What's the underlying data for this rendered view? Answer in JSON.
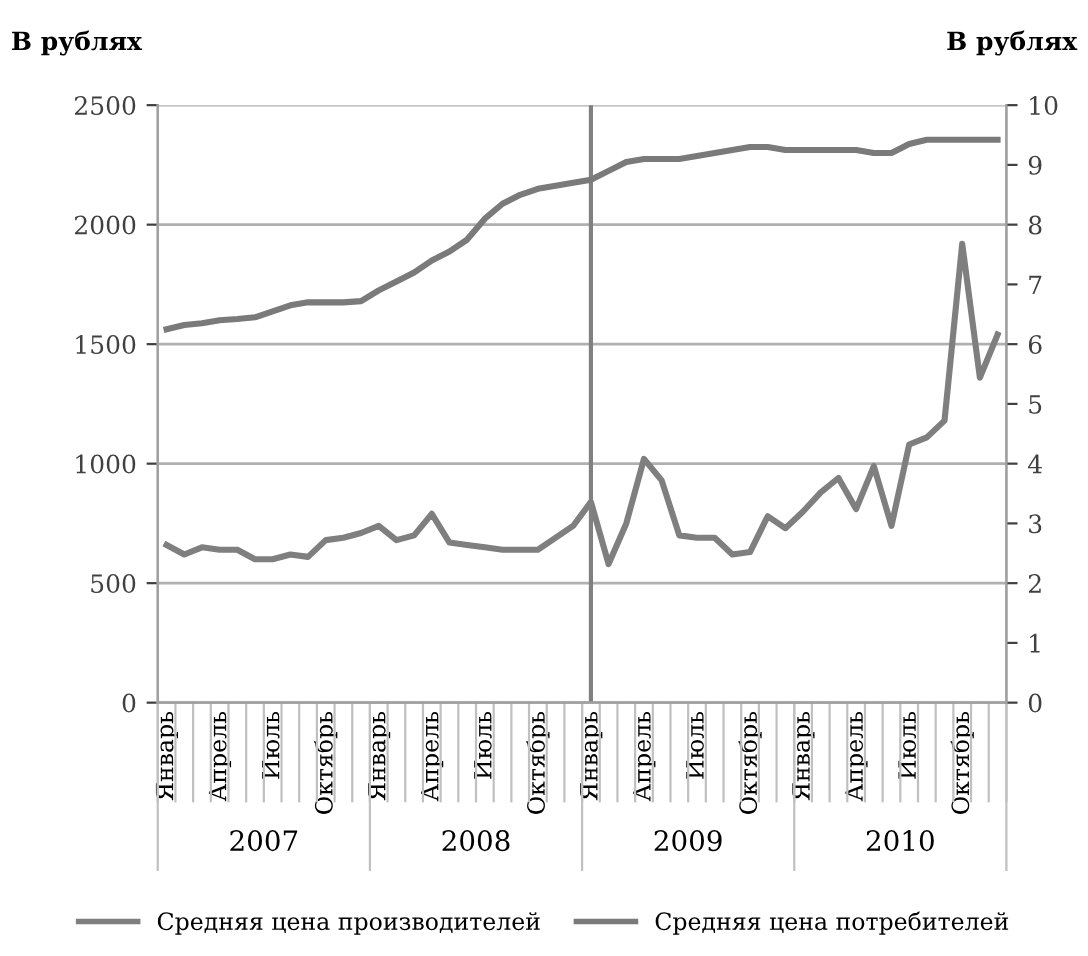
{
  "chart_data": {
    "type": "line",
    "ylabel": "В рублях",
    "y2label": "В рублях",
    "categories": [
      "Январь",
      null,
      null,
      "Апрель",
      null,
      null,
      "Июль",
      null,
      null,
      "Октябрь",
      null,
      null,
      "Январь",
      null,
      null,
      "Апрель",
      null,
      null,
      "Июль",
      null,
      null,
      "Октябрь",
      null,
      null,
      "Январь",
      null,
      null,
      "Апрель",
      null,
      null,
      "Июль",
      null,
      null,
      "Октябрь",
      null,
      null,
      "Январь",
      null,
      null,
      "Апрель",
      null,
      null,
      "Июль",
      null,
      null,
      "Октябрь",
      null,
      null
    ],
    "annotations": [
      "2007",
      "2008",
      "2009",
      "2010"
    ],
    "series": [
      {
        "name": "Средняя цена производителей",
        "color": "#7f7f7f",
        "values": [
          660,
          620,
          650,
          640,
          640,
          600,
          600,
          620,
          610,
          680,
          690,
          710,
          740,
          680,
          700,
          790,
          670,
          660,
          650,
          640,
          640,
          640,
          690,
          740,
          840,
          580,
          750,
          1020,
          930,
          700,
          690,
          690,
          620,
          630,
          780,
          730,
          800,
          880,
          940,
          810,
          990,
          740,
          1080,
          1110,
          1180,
          1920,
          1360,
          1540
        ]
      },
      {
        "name": "Средняя цена потребителей",
        "color": "#7a7a7a",
        "axis": "y2",
        "values": [
          6.25,
          6.32,
          6.35,
          6.4,
          6.42,
          6.45,
          6.55,
          6.65,
          6.7,
          6.7,
          6.7,
          6.72,
          6.9,
          7.05,
          7.2,
          7.4,
          7.55,
          7.75,
          8.1,
          8.35,
          8.5,
          8.6,
          8.65,
          8.7,
          8.75,
          8.9,
          9.05,
          9.1,
          9.1,
          9.1,
          9.15,
          9.2,
          9.25,
          9.3,
          9.3,
          9.25,
          9.25,
          9.25,
          9.25,
          9.25,
          9.2,
          9.2,
          9.35,
          9.42,
          9.42,
          9.42,
          9.42,
          9.42
        ]
      }
    ],
    "ylim": [
      0,
      2500
    ],
    "yticks": [
      0,
      500,
      1000,
      1500,
      2000,
      2500
    ],
    "y2lim": [
      0,
      10
    ],
    "y2ticks": [
      0,
      1,
      2,
      3,
      4,
      5,
      6,
      7,
      8,
      9,
      10
    ],
    "grid": "y",
    "legend": "bottom",
    "line_style": "solid",
    "marker": "none"
  }
}
